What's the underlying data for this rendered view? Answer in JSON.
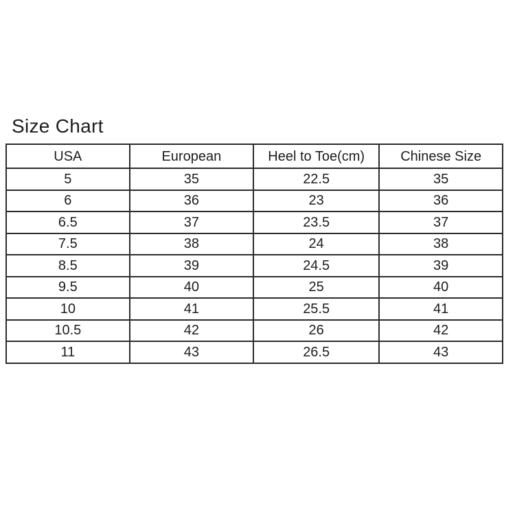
{
  "page": {
    "background_color": "#ffffff",
    "text_color": "#1d1d1d",
    "border_color": "#2b2b2b"
  },
  "chart_data": {
    "type": "table",
    "title": "Size Chart",
    "columns": [
      "USA",
      "European",
      "Heel to Toe(cm)",
      "Chinese Size"
    ],
    "rows": [
      [
        "5",
        "35",
        "22.5",
        "35"
      ],
      [
        "6",
        "36",
        "23",
        "36"
      ],
      [
        "6.5",
        "37",
        "23.5",
        "37"
      ],
      [
        "7.5",
        "38",
        "24",
        "38"
      ],
      [
        "8.5",
        "39",
        "24.5",
        "39"
      ],
      [
        "9.5",
        "40",
        "25",
        "40"
      ],
      [
        "10",
        "41",
        "25.5",
        "41"
      ],
      [
        "10.5",
        "42",
        "26",
        "42"
      ],
      [
        "11",
        "43",
        "26.5",
        "43"
      ]
    ],
    "layout": {
      "grid": "full-borders",
      "header_position": "top"
    }
  }
}
